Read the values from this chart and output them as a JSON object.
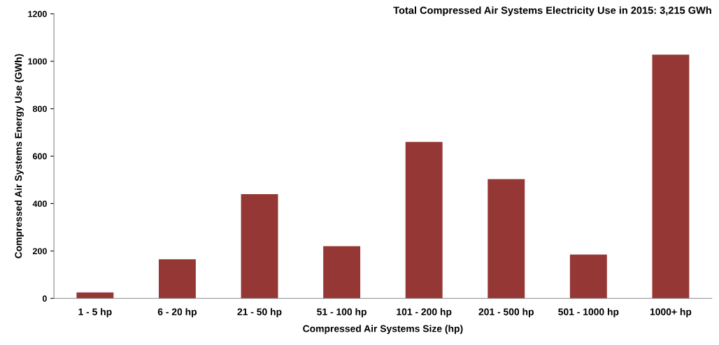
{
  "chart_data": {
    "type": "bar",
    "title": "Total Compressed Air Systems Electricity Use in 2015: 3,215 GWh",
    "xlabel": "Compressed Air Systems Size (hp)",
    "ylabel": "Compressed Air Systems Energy Use (GWh)",
    "categories": [
      "1 - 5 hp",
      "6 - 20 hp",
      "21 - 50 hp",
      "51 - 100 hp",
      "101 - 200 hp",
      "201 - 500 hp",
      "501 - 1000 hp",
      "1000+ hp"
    ],
    "values": [
      25,
      165,
      440,
      220,
      660,
      503,
      185,
      1028
    ],
    "color": "#953735",
    "ylim": [
      0,
      1200
    ],
    "yticks": [
      0,
      200,
      400,
      600,
      800,
      1000,
      1200
    ],
    "grid": false,
    "legend": false
  }
}
